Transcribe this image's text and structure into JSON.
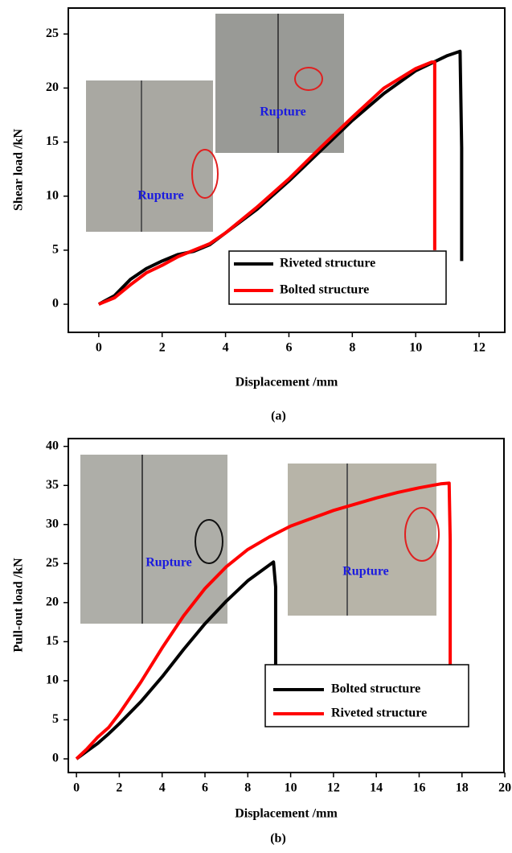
{
  "chart_data": [
    {
      "type": "line",
      "label": "(a)",
      "x_label": "Displacement /mm",
      "y_label": "Shear load /kN",
      "xlim": [
        -0.96,
        12.81
      ],
      "ylim": [
        -2.6,
        27.4
      ],
      "xticks": [
        0,
        2,
        4,
        6,
        8,
        10,
        12
      ],
      "yticks": [
        0,
        5,
        10,
        15,
        20,
        25
      ],
      "annotations": [
        "Rupture",
        "Rupture"
      ],
      "series": [
        {
          "name": "Riveted structure",
          "color": "#000000",
          "x": [
            0,
            0.5,
            1,
            1.5,
            2,
            2.5,
            3,
            3.5,
            4,
            5,
            6,
            7,
            8,
            9,
            10,
            11,
            11.4,
            11.45,
            11.45
          ],
          "values": [
            0,
            0.8,
            2.3,
            3.3,
            4,
            4.6,
            4.9,
            5.5,
            6.6,
            8.8,
            11.4,
            14.2,
            17,
            19.5,
            21.6,
            23,
            23.4,
            14.5,
            4
          ]
        },
        {
          "name": "Bolted structure",
          "color": "#ff0000",
          "x": [
            0,
            0.5,
            1,
            1.5,
            2,
            2.5,
            3,
            3.5,
            4,
            5,
            6,
            7,
            8,
            9,
            10,
            10.5,
            10.6,
            10.6
          ],
          "values": [
            0,
            0.6,
            1.8,
            2.9,
            3.6,
            4.4,
            5,
            5.6,
            6.6,
            9,
            11.6,
            14.5,
            17.3,
            20,
            21.8,
            22.4,
            22.4,
            5
          ]
        }
      ]
    },
    {
      "type": "line",
      "label": "(b)",
      "x_label": "Displacement /mm",
      "y_label": "Pull-out load /kN",
      "xlim": [
        -0.38,
        19.96
      ],
      "ylim": [
        -1.75,
        41
      ],
      "xticks": [
        0,
        2,
        4,
        6,
        8,
        10,
        12,
        14,
        16,
        18,
        20
      ],
      "yticks": [
        0,
        5,
        10,
        15,
        20,
        25,
        30,
        35,
        40
      ],
      "annotations": [
        "Rupture",
        "Rupture"
      ],
      "series": [
        {
          "name": "Bolted structure",
          "color": "#000000",
          "x": [
            0,
            0.5,
            1,
            1.5,
            2,
            3,
            4,
            5,
            6,
            7,
            8,
            9,
            9.2,
            9.3,
            9.3
          ],
          "values": [
            0,
            1,
            2,
            3.2,
            4.5,
            7.3,
            10.5,
            14,
            17.3,
            20.2,
            22.8,
            24.8,
            25.2,
            22,
            9
          ]
        },
        {
          "name": "Riveted structure",
          "color": "#ff0000",
          "x": [
            0,
            0.5,
            1,
            1.5,
            2,
            3,
            4,
            5,
            6,
            7,
            8,
            9,
            10,
            11,
            12,
            13,
            14,
            15,
            16,
            17,
            17.4,
            17.45,
            17.45
          ],
          "values": [
            0,
            1.3,
            2.8,
            4,
            5.8,
            9.8,
            14.2,
            18.3,
            21.8,
            24.6,
            26.8,
            28.4,
            29.8,
            30.8,
            31.8,
            32.6,
            33.4,
            34.1,
            34.7,
            35.2,
            35.3,
            28,
            12
          ]
        }
      ]
    }
  ]
}
